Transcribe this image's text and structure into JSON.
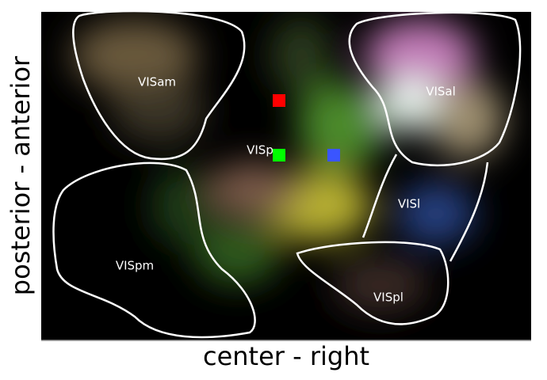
{
  "x_label": "center - right",
  "y_label": "posterior - anterior",
  "regions": [
    {
      "label": "VISam"
    },
    {
      "label": "VISal"
    },
    {
      "label": "VISp"
    },
    {
      "label": "VISl"
    },
    {
      "label": "VISpm"
    },
    {
      "label": "VISpl"
    }
  ]
}
